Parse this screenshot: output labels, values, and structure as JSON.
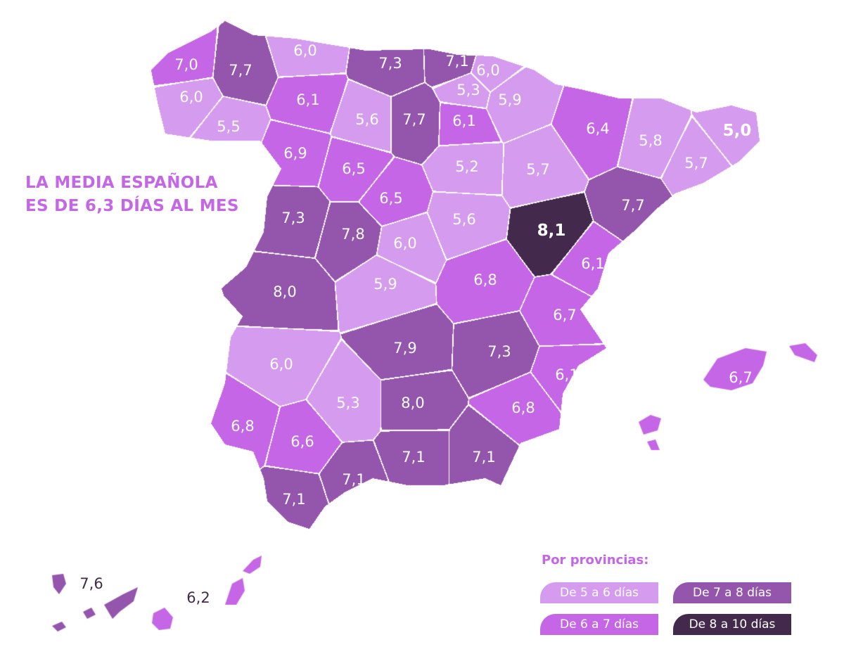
{
  "headline": {
    "line1": "LA MEDIA ESPAÑOLA",
    "line2": "ES DE 6,3 DÍAS AL MES"
  },
  "colors": {
    "5-6": "#d59bee",
    "6-7": "#c466e6",
    "7-8": "#9456ad",
    "8-10": "#432a4d"
  },
  "legend": {
    "title": "Por provincias:",
    "items": [
      {
        "label": "De 5 a 6 días",
        "level": "5-6"
      },
      {
        "label": "De 6 a 7 días",
        "level": "6-7"
      },
      {
        "label": "De 7 a 8 días",
        "level": "7-8"
      },
      {
        "label": "De 8 a 10 días",
        "level": "8-10"
      }
    ]
  },
  "provinces": [
    {
      "value": "7,0",
      "level": "6-7"
    },
    {
      "value": "7,7",
      "level": "7-8"
    },
    {
      "value": "6,0",
      "level": "5-6"
    },
    {
      "value": "5,5",
      "level": "5-6"
    },
    {
      "value": "6,0",
      "level": "5-6"
    },
    {
      "value": "7,3",
      "level": "7-8"
    },
    {
      "value": "7,1",
      "level": "7-8"
    },
    {
      "value": "6,0",
      "level": "5-6"
    },
    {
      "value": "5,3",
      "level": "5-6"
    },
    {
      "value": "5,9",
      "level": "5-6"
    },
    {
      "value": "6,1",
      "level": "6-7"
    },
    {
      "value": "5,6",
      "level": "5-6"
    },
    {
      "value": "7,7",
      "level": "7-8"
    },
    {
      "value": "6,1",
      "level": "6-7"
    },
    {
      "value": "6,4",
      "level": "6-7"
    },
    {
      "value": "5,8",
      "level": "5-6"
    },
    {
      "value": "5,0",
      "level": "5-6"
    },
    {
      "value": "5,7",
      "level": "5-6"
    },
    {
      "value": "6,9",
      "level": "6-7"
    },
    {
      "value": "6,5",
      "level": "6-7"
    },
    {
      "value": "5,2",
      "level": "5-6"
    },
    {
      "value": "5,7",
      "level": "5-6"
    },
    {
      "value": "7,7",
      "level": "7-8"
    },
    {
      "value": "7,3",
      "level": "7-8"
    },
    {
      "value": "6,5",
      "level": "6-7"
    },
    {
      "value": "7,8",
      "level": "7-8"
    },
    {
      "value": "5,6",
      "level": "5-6"
    },
    {
      "value": "8,1",
      "level": "8-10"
    },
    {
      "value": "6,0",
      "level": "5-6"
    },
    {
      "value": "6,1",
      "level": "6-7"
    },
    {
      "value": "8,0",
      "level": "7-8"
    },
    {
      "value": "5,9",
      "level": "5-6"
    },
    {
      "value": "6,8",
      "level": "6-7"
    },
    {
      "value": "6,7",
      "level": "6-7"
    },
    {
      "value": "6,0",
      "level": "5-6"
    },
    {
      "value": "7,9",
      "level": "7-8"
    },
    {
      "value": "7,3",
      "level": "7-8"
    },
    {
      "value": "6,1",
      "level": "6-7"
    },
    {
      "value": "5,3",
      "level": "5-6"
    },
    {
      "value": "8,0",
      "level": "7-8"
    },
    {
      "value": "6,8",
      "level": "6-7"
    },
    {
      "value": "6,8",
      "level": "6-7"
    },
    {
      "value": "6,6",
      "level": "6-7"
    },
    {
      "value": "7,1",
      "level": "7-8"
    },
    {
      "value": "7,1",
      "level": "7-8"
    },
    {
      "value": "7,1",
      "level": "7-8"
    },
    {
      "value": "7,1",
      "level": "7-8"
    }
  ],
  "islands": [
    {
      "group": "balearic",
      "value": "6,7",
      "level": "6-7"
    },
    {
      "group": "canary-west",
      "value": "7,6",
      "level": "7-8"
    },
    {
      "group": "canary-east",
      "value": "6,2",
      "level": "6-7"
    }
  ]
}
